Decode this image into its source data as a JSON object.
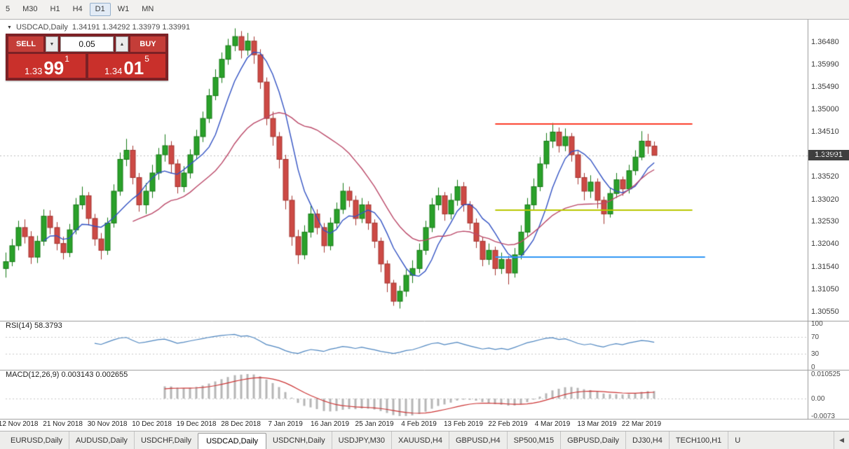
{
  "toolbar": {
    "timeframes": [
      "5",
      "M30",
      "H1",
      "H4",
      "D1",
      "W1",
      "MN"
    ],
    "active_timeframe": "D1"
  },
  "window": {
    "title": "USDCAD,Daily",
    "ohlc": "1.34191 1.34292 1.33979 1.33991"
  },
  "trade_panel": {
    "sell_label": "SELL",
    "buy_label": "BUY",
    "volume": "0.05",
    "down_icon": "▼",
    "up_icon": "▲",
    "sell_price": {
      "small": "1.33",
      "big": "99",
      "sup": "1"
    },
    "buy_price": {
      "small": "1.34",
      "big": "01",
      "sup": "5"
    }
  },
  "price_axis": {
    "ticks": [
      "1.36480",
      "1.35990",
      "1.35490",
      "1.35000",
      "1.34510",
      "1.34010",
      "1.33520",
      "1.33020",
      "1.32530",
      "1.32040",
      "1.31540",
      "1.31050",
      "1.30550"
    ],
    "current_price": "1.33991"
  },
  "rsi_panel": {
    "label": "RSI(14) 58.3793",
    "level_labels": [
      "100",
      "70",
      "30",
      "0"
    ],
    "level_values": [
      100,
      70,
      30,
      0
    ]
  },
  "macd_panel": {
    "label": "MACD(12,26,9) 0.003143 0.002655",
    "level_labels": [
      "0.010525",
      "0.00",
      "-0.0073"
    ]
  },
  "bottom_tabs": {
    "tabs": [
      "EURUSD,Daily",
      "AUDUSD,Daily",
      "USDCHF,Daily",
      "USDCAD,Daily",
      "USDCNH,Daily",
      "USDJPY,M30",
      "XAUUSD,H4",
      "GBPUSD,H4",
      "SP500,M15",
      "GBPUSD,Daily",
      "DJ30,H4",
      "TECH100,H1",
      "U"
    ],
    "active": "USDCAD,Daily",
    "scroll_left_icon": "◀"
  },
  "chart_data": {
    "type": "candlestick",
    "symbol": "USDCAD",
    "timeframe": "Daily",
    "title": "USDCAD,Daily 1.34191 1.34292 1.33979 1.33991",
    "ylim": [
      1.30396,
      1.3688
    ],
    "grid": false,
    "x_labels": [
      "12 Nov 2018",
      "21 Nov 2018",
      "30 Nov 2018",
      "10 Dec 2018",
      "19 Dec 2018",
      "28 Dec 2018",
      "7 Jan 2019",
      "16 Jan 2019",
      "25 Jan 2019",
      "4 Feb 2019",
      "13 Feb 2019",
      "22 Feb 2019",
      "4 Mar 2019",
      "13 Mar 2019",
      "22 Mar 2019"
    ],
    "x_label_start_index": 2,
    "x_label_step": 7,
    "colors": {
      "bull": "#2aa12a",
      "bull_border": "#157a15",
      "bear": "#cd4a45",
      "bear_border": "#a33530",
      "bid_line": "#bbbbbb",
      "axis_line": "#9a9a9a",
      "level_line": "#c8c8c8"
    },
    "overlays": [
      {
        "type": "sma",
        "period": 7,
        "color": "#3353c4"
      },
      {
        "type": "sma",
        "period": 21,
        "color": "#bb4868"
      }
    ],
    "trend_lines": [
      {
        "price": 1.3468,
        "i1": 77,
        "i2": 108,
        "color": "#fc3b28",
        "width": 2
      },
      {
        "price": 1.3279,
        "i1": 77,
        "i2": 108,
        "color": "#b9c700",
        "width": 2
      },
      {
        "price": 1.3175,
        "i1": 77,
        "i2": 110,
        "color": "#2f96f5",
        "width": 2
      }
    ],
    "rsi": {
      "period": 14,
      "last": 58.3793,
      "levels": [
        70,
        30
      ],
      "range": [
        0,
        100
      ],
      "color": "#4e86c0"
    },
    "macd": {
      "fast": 12,
      "slow": 26,
      "signal": 9,
      "last": 0.003143,
      "signal_last": 0.002655,
      "range": [
        -0.0073,
        0.010525
      ],
      "bar_color": "#b6b6b6",
      "line_color": "#cc3333"
    },
    "candles": [
      [
        1.315,
        1.3185,
        1.313,
        1.3165
      ],
      [
        1.3165,
        1.3215,
        1.3155,
        1.32
      ],
      [
        1.32,
        1.3255,
        1.319,
        1.324
      ],
      [
        1.324,
        1.3258,
        1.3205,
        1.322
      ],
      [
        1.322,
        1.3232,
        1.316,
        1.3175
      ],
      [
        1.3175,
        1.3222,
        1.3162,
        1.321
      ],
      [
        1.321,
        1.328,
        1.32,
        1.3265
      ],
      [
        1.3265,
        1.3278,
        1.3225,
        1.324
      ],
      [
        1.324,
        1.3252,
        1.319,
        1.3205
      ],
      [
        1.3205,
        1.322,
        1.317,
        1.3185
      ],
      [
        1.3185,
        1.3248,
        1.3175,
        1.3235
      ],
      [
        1.3235,
        1.3305,
        1.3225,
        1.329
      ],
      [
        1.329,
        1.333,
        1.328,
        1.331
      ],
      [
        1.331,
        1.3318,
        1.3245,
        1.326
      ],
      [
        1.326,
        1.327,
        1.32,
        1.3215
      ],
      [
        1.3215,
        1.3228,
        1.317,
        1.319
      ],
      [
        1.319,
        1.3262,
        1.318,
        1.325
      ],
      [
        1.325,
        1.3335,
        1.324,
        1.332
      ],
      [
        1.332,
        1.3405,
        1.331,
        1.339
      ],
      [
        1.339,
        1.3435,
        1.3375,
        1.341
      ],
      [
        1.341,
        1.342,
        1.3335,
        1.335
      ],
      [
        1.335,
        1.336,
        1.3275,
        1.329
      ],
      [
        1.329,
        1.3338,
        1.327,
        1.332
      ],
      [
        1.332,
        1.3378,
        1.3305,
        1.336
      ],
      [
        1.336,
        1.3415,
        1.3345,
        1.34
      ],
      [
        1.34,
        1.3445,
        1.3385,
        1.342
      ],
      [
        1.342,
        1.343,
        1.336,
        1.338
      ],
      [
        1.338,
        1.339,
        1.3315,
        1.333
      ],
      [
        1.333,
        1.3375,
        1.3318,
        1.336
      ],
      [
        1.336,
        1.3412,
        1.3348,
        1.34
      ],
      [
        1.34,
        1.3455,
        1.339,
        1.344
      ],
      [
        1.344,
        1.3495,
        1.3428,
        1.348
      ],
      [
        1.348,
        1.3545,
        1.347,
        1.353
      ],
      [
        1.353,
        1.3588,
        1.352,
        1.357
      ],
      [
        1.357,
        1.3625,
        1.3558,
        1.361
      ],
      [
        1.361,
        1.3655,
        1.3598,
        1.364
      ],
      [
        1.364,
        1.3678,
        1.3628,
        1.366
      ],
      [
        1.366,
        1.3672,
        1.3612,
        1.363
      ],
      [
        1.363,
        1.3668,
        1.3618,
        1.365
      ],
      [
        1.365,
        1.366,
        1.36,
        1.362
      ],
      [
        1.362,
        1.3632,
        1.3545,
        1.356
      ],
      [
        1.356,
        1.357,
        1.3465,
        1.348
      ],
      [
        1.348,
        1.3495,
        1.342,
        1.344
      ],
      [
        1.344,
        1.345,
        1.337,
        1.339
      ],
      [
        1.339,
        1.34,
        1.328,
        1.33
      ],
      [
        1.33,
        1.331,
        1.32,
        1.322
      ],
      [
        1.322,
        1.3235,
        1.316,
        1.318
      ],
      [
        1.318,
        1.3245,
        1.317,
        1.323
      ],
      [
        1.323,
        1.3288,
        1.3218,
        1.327
      ],
      [
        1.327,
        1.328,
        1.3225,
        1.324
      ],
      [
        1.324,
        1.325,
        1.3185,
        1.32
      ],
      [
        1.32,
        1.3262,
        1.319,
        1.325
      ],
      [
        1.325,
        1.3295,
        1.3238,
        1.328
      ],
      [
        1.328,
        1.3338,
        1.327,
        1.332
      ],
      [
        1.332,
        1.333,
        1.3285,
        1.33
      ],
      [
        1.33,
        1.331,
        1.3245,
        1.326
      ],
      [
        1.326,
        1.3305,
        1.325,
        1.329
      ],
      [
        1.329,
        1.3298,
        1.3235,
        1.325
      ],
      [
        1.325,
        1.3258,
        1.3195,
        1.321
      ],
      [
        1.321,
        1.3218,
        1.3142,
        1.316
      ],
      [
        1.316,
        1.3168,
        1.3098,
        1.3118
      ],
      [
        1.3118,
        1.3125,
        1.3068,
        1.3078
      ],
      [
        1.3078,
        1.3112,
        1.3062,
        1.31
      ],
      [
        1.31,
        1.3148,
        1.3088,
        1.3135
      ],
      [
        1.3135,
        1.3168,
        1.3118,
        1.315
      ],
      [
        1.315,
        1.3205,
        1.314,
        1.319
      ],
      [
        1.319,
        1.3255,
        1.318,
        1.324
      ],
      [
        1.324,
        1.3305,
        1.323,
        1.329
      ],
      [
        1.329,
        1.3328,
        1.3278,
        1.331
      ],
      [
        1.331,
        1.3318,
        1.3255,
        1.327
      ],
      [
        1.327,
        1.3315,
        1.3258,
        1.33
      ],
      [
        1.33,
        1.3345,
        1.3288,
        1.333
      ],
      [
        1.333,
        1.334,
        1.3275,
        1.329
      ],
      [
        1.329,
        1.3298,
        1.3235,
        1.325
      ],
      [
        1.325,
        1.326,
        1.3195,
        1.321
      ],
      [
        1.321,
        1.322,
        1.3155,
        1.317
      ],
      [
        1.317,
        1.3205,
        1.3158,
        1.319
      ],
      [
        1.319,
        1.3198,
        1.3135,
        1.315
      ],
      [
        1.315,
        1.3185,
        1.3138,
        1.317
      ],
      [
        1.317,
        1.3178,
        1.3115,
        1.314
      ],
      [
        1.314,
        1.3195,
        1.313,
        1.318
      ],
      [
        1.318,
        1.3245,
        1.317,
        1.323
      ],
      [
        1.323,
        1.3305,
        1.322,
        1.329
      ],
      [
        1.329,
        1.3348,
        1.328,
        1.333
      ],
      [
        1.333,
        1.3395,
        1.332,
        1.338
      ],
      [
        1.338,
        1.3448,
        1.337,
        1.343
      ],
      [
        1.343,
        1.347,
        1.3415,
        1.345
      ],
      [
        1.345,
        1.346,
        1.3405,
        1.342
      ],
      [
        1.342,
        1.3458,
        1.3408,
        1.344
      ],
      [
        1.344,
        1.3448,
        1.3385,
        1.34
      ],
      [
        1.34,
        1.3408,
        1.3335,
        1.335
      ],
      [
        1.335,
        1.336,
        1.33,
        1.332
      ],
      [
        1.332,
        1.3355,
        1.3305,
        1.334
      ],
      [
        1.334,
        1.3348,
        1.3282,
        1.33
      ],
      [
        1.33,
        1.3308,
        1.3248,
        1.327
      ],
      [
        1.327,
        1.3328,
        1.3262,
        1.3315
      ],
      [
        1.3315,
        1.336,
        1.3305,
        1.3345
      ],
      [
        1.3345,
        1.3352,
        1.331,
        1.3325
      ],
      [
        1.3325,
        1.3378,
        1.3315,
        1.3365
      ],
      [
        1.3365,
        1.341,
        1.3355,
        1.3395
      ],
      [
        1.3395,
        1.3452,
        1.3388,
        1.343
      ],
      [
        1.343,
        1.3446,
        1.3402,
        1.3419
      ],
      [
        1.34191,
        1.34292,
        1.33979,
        1.33991
      ]
    ]
  }
}
